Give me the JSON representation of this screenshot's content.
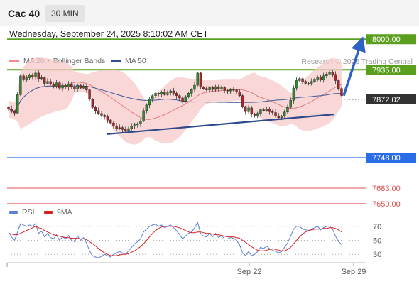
{
  "header": {
    "title": "Cac 40",
    "timeframe": "30 MIN"
  },
  "datetime": "Wednesday, September 24, 2025 8:10:02 AM CET",
  "legend": [
    {
      "label": "MA 20 + Bollinger Bands",
      "color": "#f08c8c"
    },
    {
      "label": "MA 50",
      "color": "#2f4f8f"
    }
  ],
  "credit": "Research © 2025 Trading Central",
  "rsi_legend": [
    {
      "label": "RSI",
      "color": "#5b7fd6"
    },
    {
      "label": "9MA",
      "color": "#d62020"
    }
  ],
  "colors": {
    "resistance": "#5aa01e",
    "support": "#2b6de8",
    "stop": "#e05050",
    "trendline": "#2f4a8a",
    "arrow": "#2d62c4",
    "current": "#333333"
  },
  "chart_data": [
    {
      "type": "candlestick",
      "title": "Cac 40",
      "ylim": [
        7600,
        8020
      ],
      "x_tick_labels": [
        "Sep 22",
        "Sep 29"
      ],
      "levels": [
        {
          "value": 8000.0,
          "label": "8000.00",
          "kind": "resistance"
        },
        {
          "value": 7935.0,
          "label": "7935.00",
          "kind": "resistance"
        },
        {
          "value": 7872.02,
          "label": "7872.02",
          "kind": "current"
        },
        {
          "value": 7748.0,
          "label": "7748.00",
          "kind": "support"
        },
        {
          "value": 7683.0,
          "label": "7683.00",
          "kind": "stop"
        },
        {
          "value": 7650.0,
          "label": "7650.00",
          "kind": "stop"
        }
      ],
      "closes": [
        7852,
        7846,
        7843,
        7882,
        7922,
        7915,
        7918,
        7924,
        7920,
        7928,
        7916,
        7918,
        7906,
        7910,
        7904,
        7900,
        7907,
        7896,
        7902,
        7898,
        7905,
        7898,
        7894,
        7902,
        7896,
        7900,
        7892,
        7872,
        7855,
        7848,
        7842,
        7838,
        7835,
        7828,
        7822,
        7815,
        7810,
        7812,
        7808,
        7806,
        7810,
        7815,
        7818,
        7820,
        7826,
        7848,
        7860,
        7872,
        7880,
        7885,
        7883,
        7888,
        7882,
        7886,
        7890,
        7885,
        7880,
        7875,
        7868,
        7878,
        7885,
        7893,
        7902,
        7928,
        7898,
        7895,
        7892,
        7897,
        7893,
        7899,
        7894,
        7897,
        7891,
        7890,
        7893,
        7892,
        7888,
        7880,
        7857,
        7846,
        7854,
        7841,
        7838,
        7842,
        7850,
        7848,
        7852,
        7846,
        7844,
        7837,
        7833,
        7836,
        7845,
        7855,
        7870,
        7896,
        7912,
        7916,
        7910,
        7906,
        7906,
        7910,
        7915,
        7920,
        7914,
        7922,
        7926,
        7930,
        7925,
        7912,
        7895,
        7880
      ],
      "trendline": {
        "from": 7798,
        "to": 7840
      },
      "forecast_arrow": {
        "from": 7880,
        "to": 8000
      }
    },
    {
      "type": "line",
      "title": "RSI",
      "ylim": [
        20,
        80
      ],
      "y_ticks": [
        "70",
        "50",
        "30"
      ],
      "series": [
        {
          "name": "RSI",
          "values": [
            62,
            55,
            50,
            62,
            74,
            72,
            70,
            72,
            70,
            74,
            60,
            63,
            55,
            60,
            54,
            52,
            58,
            50,
            55,
            52,
            57,
            50,
            48,
            56,
            50,
            54,
            46,
            35,
            28,
            26,
            25,
            27,
            30,
            28,
            26,
            30,
            32,
            34,
            32,
            30,
            35,
            40,
            45,
            48,
            52,
            62,
            66,
            70,
            72,
            73,
            70,
            72,
            68,
            70,
            72,
            68,
            64,
            58,
            52,
            56,
            60,
            62,
            68,
            76,
            60,
            56,
            55,
            60,
            55,
            60,
            54,
            57,
            52,
            52,
            54,
            53,
            50,
            44,
            32,
            28,
            34,
            28,
            30,
            34,
            40,
            38,
            42,
            38,
            36,
            34,
            32,
            34,
            40,
            46,
            56,
            66,
            70,
            70,
            66,
            65,
            64,
            66,
            68,
            70,
            65,
            68,
            70,
            70,
            66,
            56,
            48,
            44
          ]
        },
        {
          "name": "9MA",
          "values": [
            60,
            59,
            58,
            58,
            60,
            62,
            64,
            66,
            68,
            70,
            68,
            67,
            64,
            62,
            60,
            58,
            57,
            56,
            55,
            54,
            54,
            53,
            53,
            53,
            52,
            52,
            51,
            48,
            45,
            42,
            38,
            35,
            32,
            30,
            28,
            28,
            28,
            29,
            30,
            30,
            31,
            33,
            35,
            38,
            41,
            45,
            50,
            55,
            60,
            64,
            67,
            69,
            70,
            70,
            70,
            70,
            69,
            68,
            66,
            64,
            62,
            61,
            61,
            62,
            62,
            61,
            60,
            60,
            59,
            58,
            58,
            57,
            56,
            55,
            55,
            55,
            54,
            53,
            50,
            47,
            44,
            41,
            38,
            36,
            35,
            35,
            36,
            37,
            38,
            37,
            36,
            35,
            35,
            37,
            40,
            45,
            50,
            55,
            59,
            62,
            64,
            65,
            66,
            66,
            66,
            67,
            67,
            68,
            68,
            67,
            65,
            62
          ]
        }
      ]
    }
  ]
}
